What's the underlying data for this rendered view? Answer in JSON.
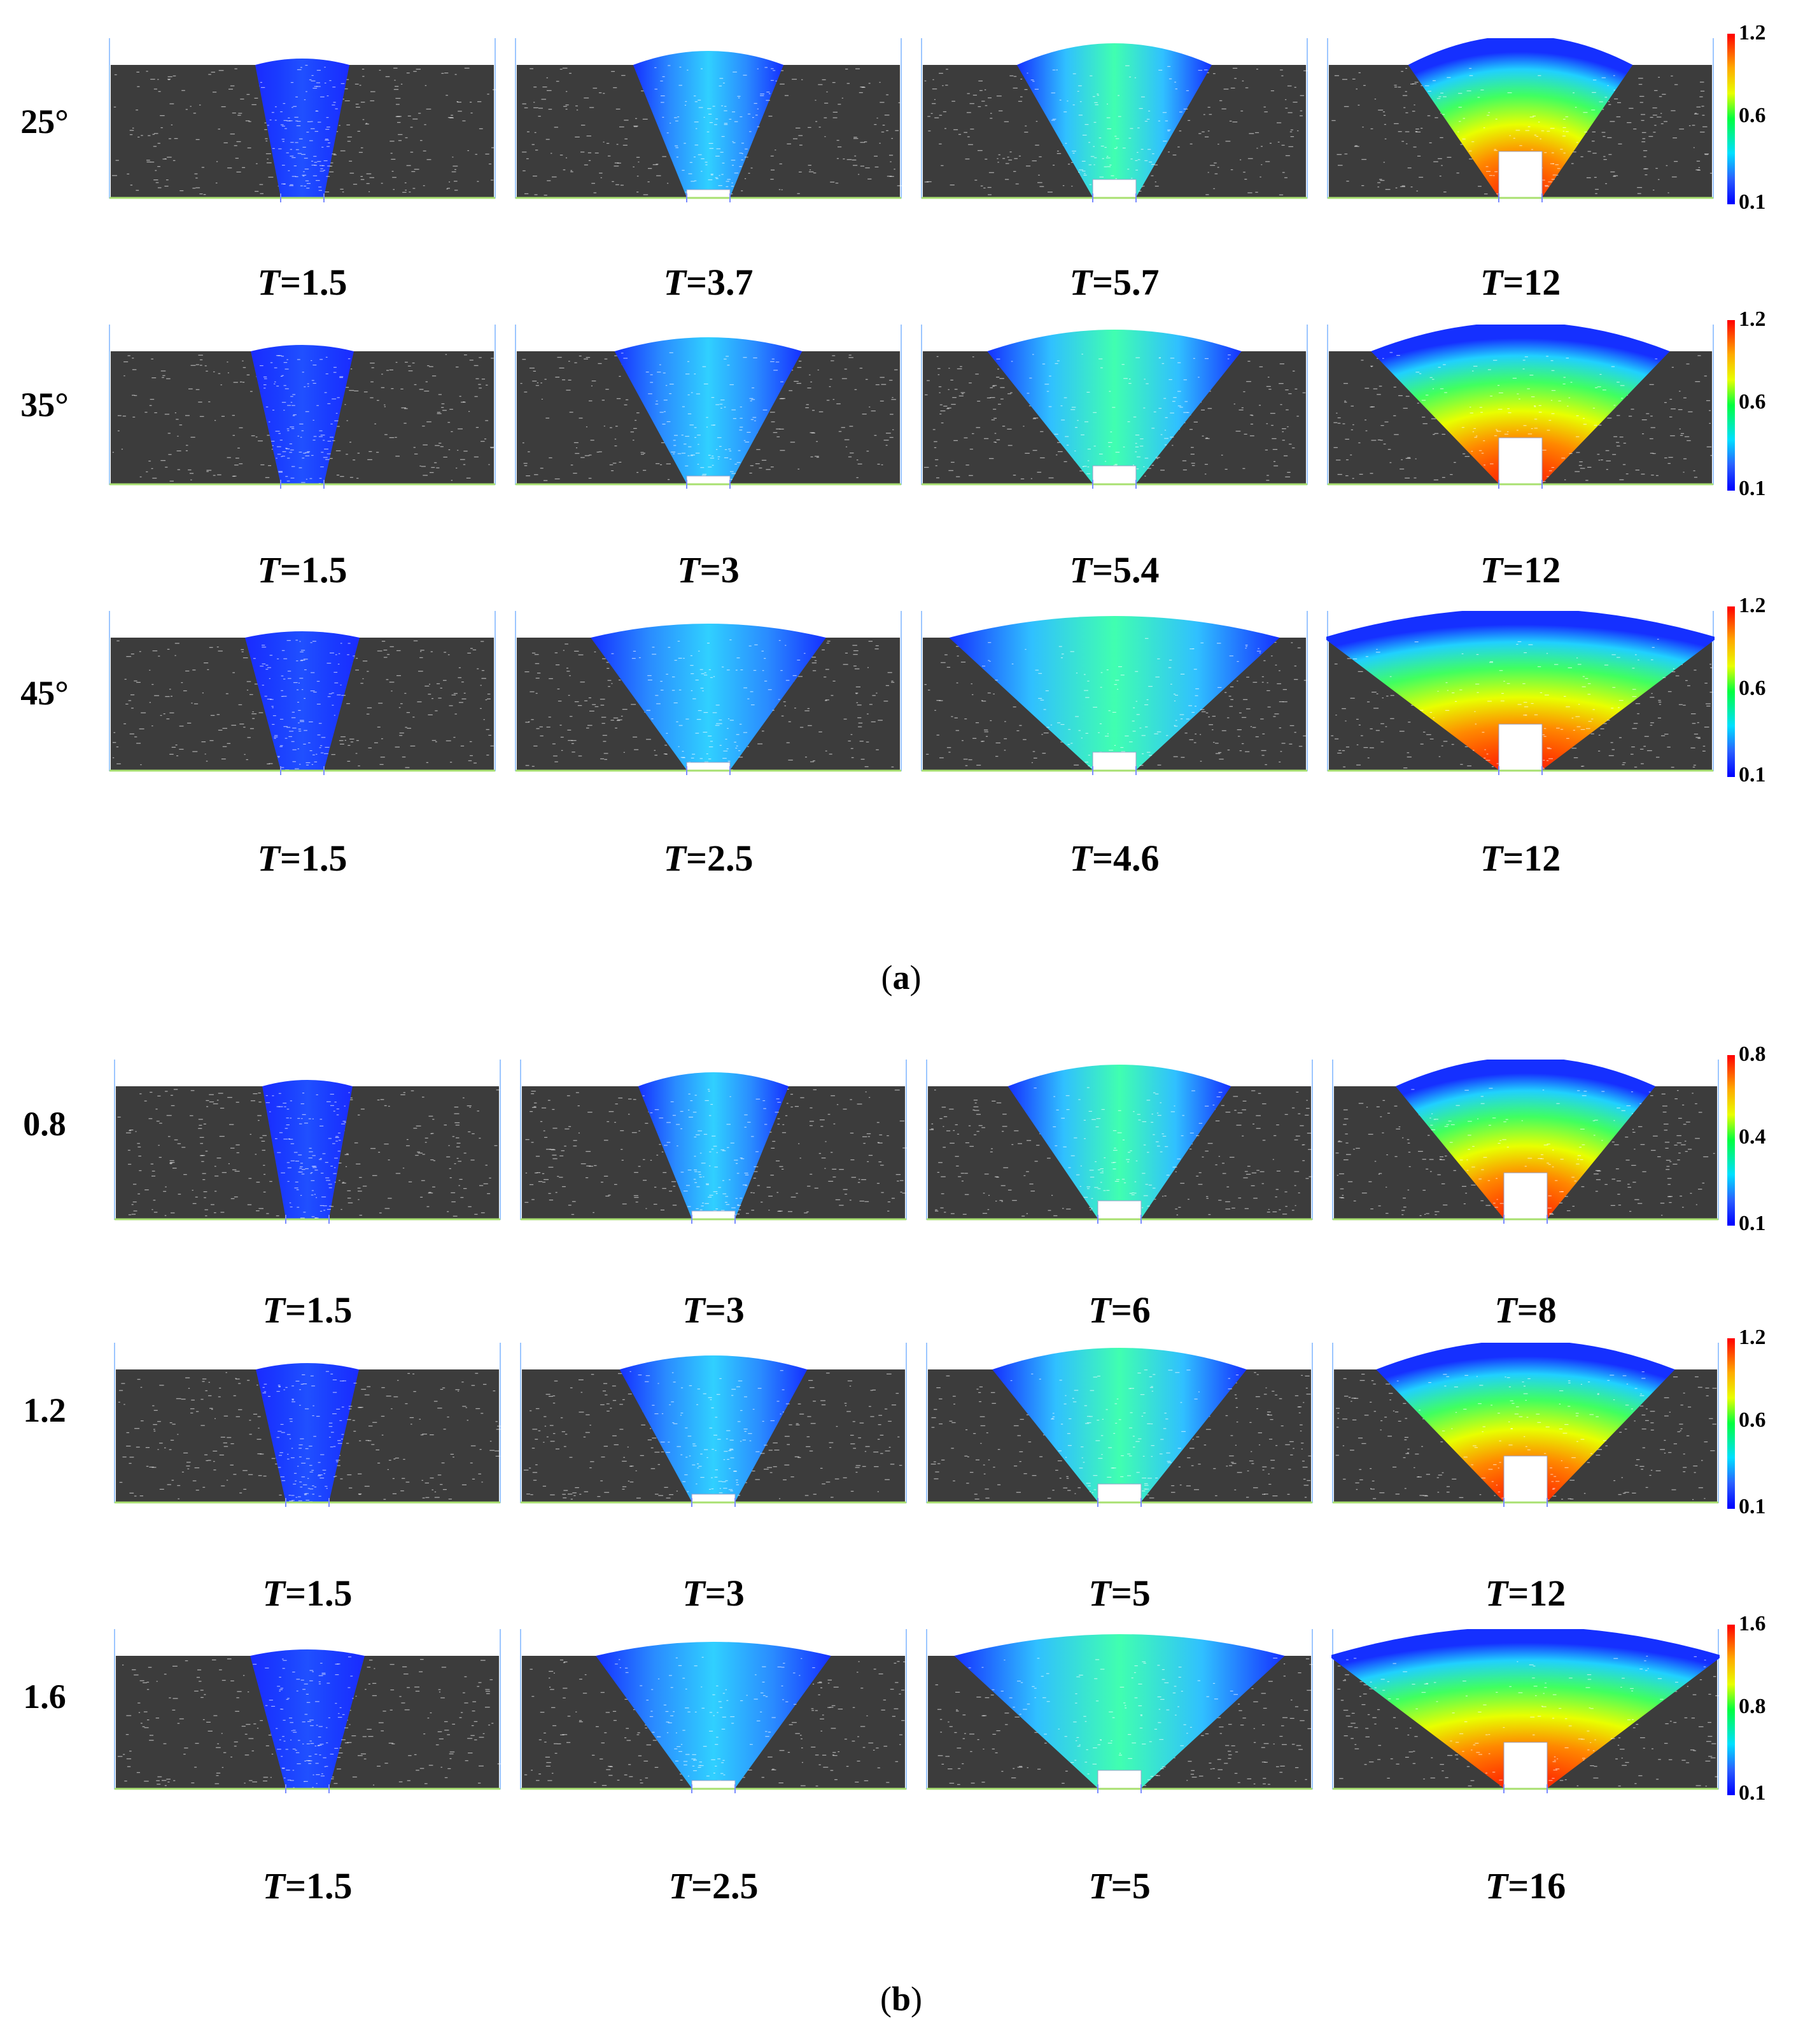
{
  "section_a": {
    "caption": "a",
    "rows": [
      {
        "label": "25°",
        "times": [
          "1.5",
          "3.7",
          "5.7",
          "12"
        ],
        "colorbar": [
          "1.2",
          "0.6",
          "0.1"
        ]
      },
      {
        "label": "35°",
        "times": [
          "1.5",
          "3",
          "5.4",
          "12"
        ],
        "colorbar": [
          "1.2",
          "0.6",
          "0.1"
        ]
      },
      {
        "label": "45°",
        "times": [
          "1.5",
          "2.5",
          "4.6",
          "12"
        ],
        "colorbar": [
          "1.2",
          "0.6",
          "0.1"
        ]
      }
    ]
  },
  "section_b": {
    "caption": "b",
    "rows": [
      {
        "label": "0.8",
        "times": [
          "1.5",
          "3",
          "6",
          "8"
        ],
        "colorbar": [
          "0.8",
          "0.4",
          "0.1"
        ]
      },
      {
        "label": "1.2",
        "times": [
          "1.5",
          "3",
          "5",
          "12"
        ],
        "colorbar": [
          "1.2",
          "0.6",
          "0.1"
        ]
      },
      {
        "label": "1.6",
        "times": [
          "1.5",
          "2.5",
          "5",
          "16"
        ],
        "colorbar": [
          "1.6",
          "0.8",
          "0.1"
        ]
      }
    ]
  },
  "time_symbol": "T",
  "colors": {
    "particle_bg": "#3c3c3c",
    "low": "#0000ff",
    "mid": "#00ff40",
    "high": "#ff0000"
  }
}
